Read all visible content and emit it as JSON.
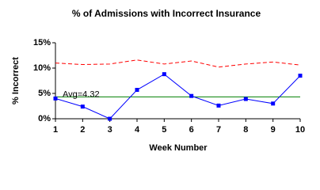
{
  "chart_data": {
    "type": "line",
    "title": "% of Admissions with Incorrect Insurance",
    "x_label": "Week Number",
    "y_label": "% Incorrect",
    "x": [
      1,
      2,
      3,
      4,
      5,
      6,
      7,
      8,
      9,
      10
    ],
    "series": [
      {
        "color": "#ff0000",
        "dashed": true,
        "markers": false,
        "values": [
          11.0,
          10.7,
          10.8,
          11.6,
          10.8,
          11.4,
          10.2,
          10.8,
          11.2,
          10.6
        ]
      },
      {
        "color": "#0000ff",
        "dashed": false,
        "markers": true,
        "values": [
          4.0,
          2.4,
          0,
          5.7,
          8.8,
          4.5,
          2.6,
          3.9,
          3.0,
          8.5
        ]
      }
    ],
    "avg": {
      "value": 4.32,
      "label": "Avg=4.32",
      "color": "#008000"
    },
    "xlim": [
      1,
      10
    ],
    "xticks": [
      1,
      2,
      3,
      4,
      5,
      6,
      7,
      8,
      9,
      10
    ],
    "ylim": [
      0,
      15
    ],
    "yticks": [
      {
        "value": 0,
        "label": "0%"
      },
      {
        "value": 5,
        "label": "5%"
      },
      {
        "value": 10,
        "label": "10%"
      },
      {
        "value": 15,
        "label": "15%"
      }
    ]
  }
}
